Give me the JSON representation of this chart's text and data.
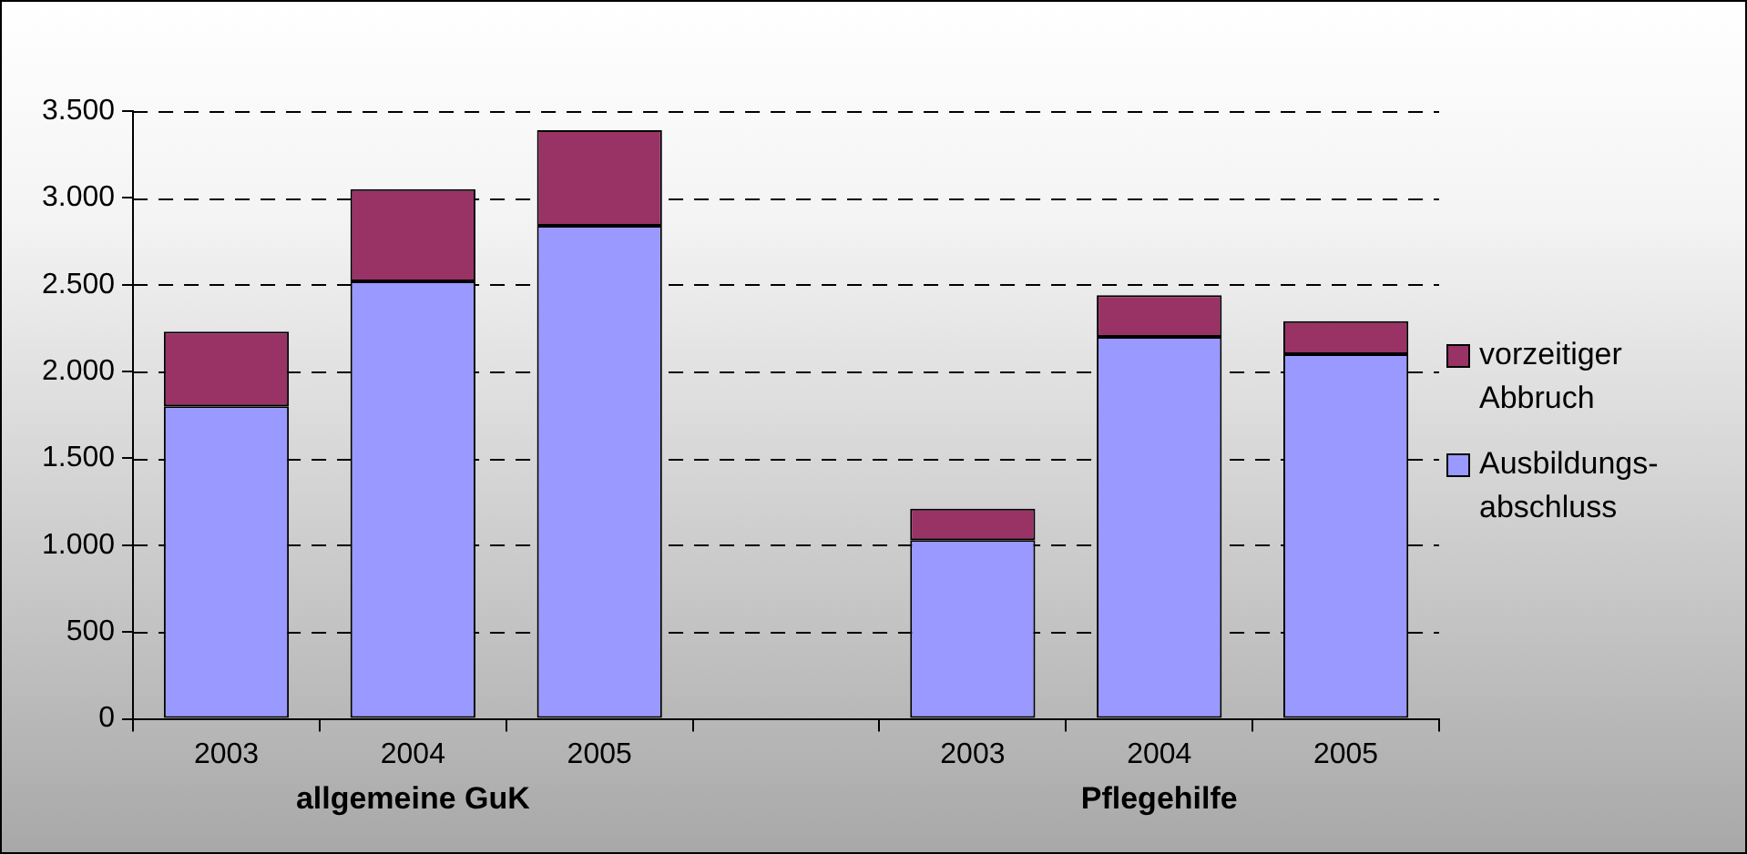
{
  "chart_data": {
    "type": "bar",
    "stacked": true,
    "categories": [
      "2003",
      "2004",
      "2005",
      null,
      "2003",
      "2004",
      "2005"
    ],
    "series": [
      {
        "name": "Ausbildungs-abschluss",
        "color": "#9999ff",
        "values": [
          1800,
          2520,
          2840,
          null,
          1030,
          2200,
          2100
        ]
      },
      {
        "name": "vorzeitiger Abbruch",
        "color": "#993366",
        "values": [
          430,
          530,
          550,
          null,
          180,
          240,
          190
        ]
      }
    ],
    "ylim": [
      0,
      3500
    ],
    "yticks": [
      {
        "value": 0,
        "label": "0"
      },
      {
        "value": 500,
        "label": "500"
      },
      {
        "value": 1000,
        "label": "1.000"
      },
      {
        "value": 1500,
        "label": "1.500"
      },
      {
        "value": 2000,
        "label": "2.000"
      },
      {
        "value": 2500,
        "label": "2.500"
      },
      {
        "value": 3000,
        "label": "3.000"
      },
      {
        "value": 3500,
        "label": "3.500"
      }
    ],
    "grid": "y",
    "legend": "right",
    "annotations": [
      "allgemeine GuK",
      "Pflegehilfe"
    ]
  }
}
